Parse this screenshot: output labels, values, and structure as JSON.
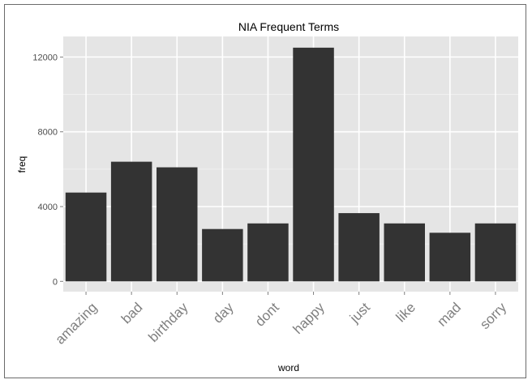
{
  "chart_data": {
    "type": "bar",
    "title": "NIA Frequent Terms",
    "xlabel": "word",
    "ylabel": "freq",
    "categories": [
      "amazing",
      "bad",
      "birthday",
      "day",
      "dont",
      "happy",
      "just",
      "like",
      "mad",
      "sorry"
    ],
    "values": [
      4750,
      6400,
      6100,
      2800,
      3100,
      12500,
      3650,
      3100,
      2600,
      3100
    ],
    "ylim": [
      -550,
      13100
    ],
    "yticks": [
      0,
      4000,
      8000,
      12000
    ],
    "ytick_labels": [
      "0",
      "4000",
      "8000",
      "12000"
    ],
    "grid": true,
    "legend": "none",
    "colors": {
      "panel": "#e5e5e5",
      "bar": "#333333",
      "grid_major": "#ffffff",
      "grid_minor": "#f2f2f2"
    }
  }
}
